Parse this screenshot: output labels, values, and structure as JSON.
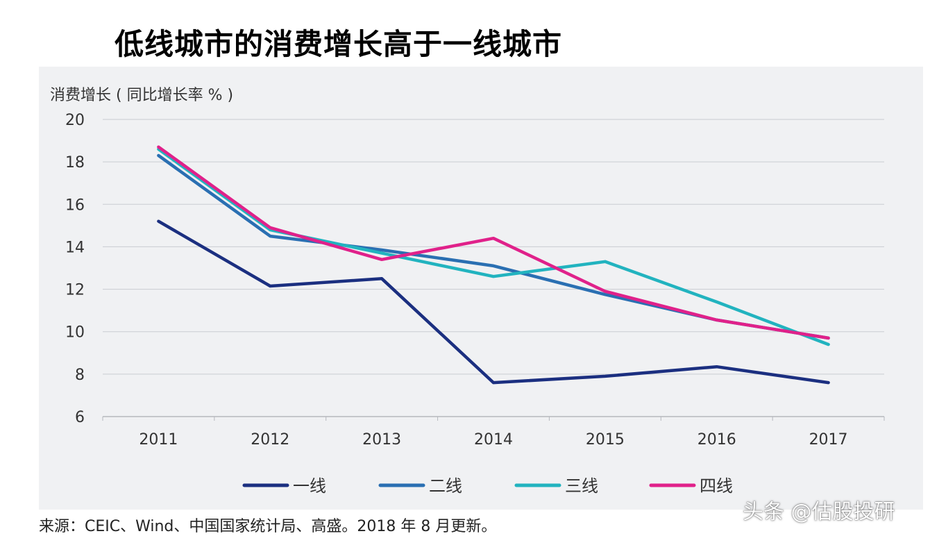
{
  "title": "低线城市的消费增长高于一线城市",
  "source": "来源：CEIC、Wind、中国国家统计局、高盛。2018 年 8 月更新。",
  "watermark": "头条 @估股投研",
  "colors": {
    "一线": "#1b2f80",
    "二线": "#2a6fb2",
    "三线": "#22b3bf",
    "四线": "#e0218a",
    "panel": "#f0f1f3",
    "grid": "#c9ccd1"
  },
  "chart_data": {
    "type": "line",
    "title": "低线城市的消费增长高于一线城市",
    "ylabel": "消费增长 ( 同比增长率 % )",
    "xlabel": "",
    "categories": [
      "2011",
      "2012",
      "2013",
      "2014",
      "2015",
      "2016",
      "2017"
    ],
    "ylim": [
      6,
      20
    ],
    "yticks": [
      6,
      8,
      10,
      12,
      14,
      16,
      18,
      20
    ],
    "grid": true,
    "legend": "bottom",
    "series": [
      {
        "name": "一线",
        "color": "#1b2f80",
        "values": [
          15.2,
          12.15,
          12.5,
          7.6,
          7.9,
          8.35,
          7.6
        ]
      },
      {
        "name": "二线",
        "color": "#2a6fb2",
        "values": [
          18.3,
          14.5,
          13.85,
          13.1,
          11.75,
          10.55,
          9.7
        ]
      },
      {
        "name": "三线",
        "color": "#22b3bf",
        "values": [
          18.6,
          14.8,
          13.7,
          12.6,
          13.3,
          11.4,
          9.4
        ]
      },
      {
        "name": "四线",
        "color": "#e0218a",
        "values": [
          18.7,
          14.9,
          13.4,
          14.4,
          11.9,
          10.55,
          9.7
        ]
      }
    ]
  }
}
